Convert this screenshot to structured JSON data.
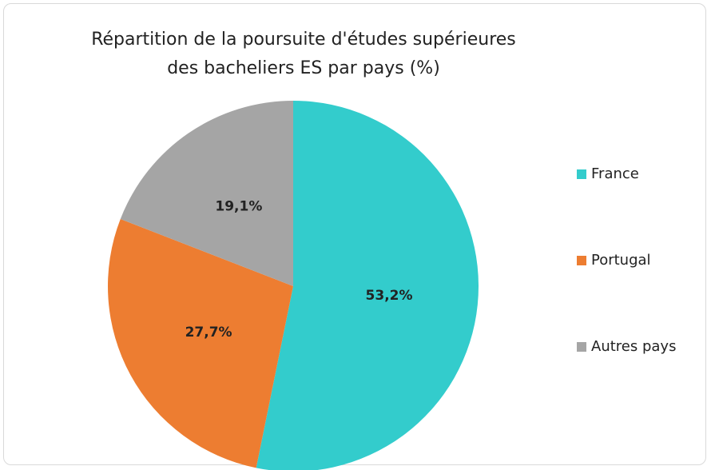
{
  "chart_data": {
    "type": "pie",
    "title": "Répartition de la poursuite d'études supérieures des bacheliers ES par pays (%)",
    "categories": [
      "France",
      "Portugal",
      "Autres pays"
    ],
    "values": [
      53.2,
      27.7,
      19.1
    ],
    "value_labels": [
      "53,2%",
      "27,7%",
      "19,1%"
    ],
    "colors": [
      "#33CCCC",
      "#ED7D31",
      "#A5A5A5"
    ],
    "legend": "right"
  }
}
